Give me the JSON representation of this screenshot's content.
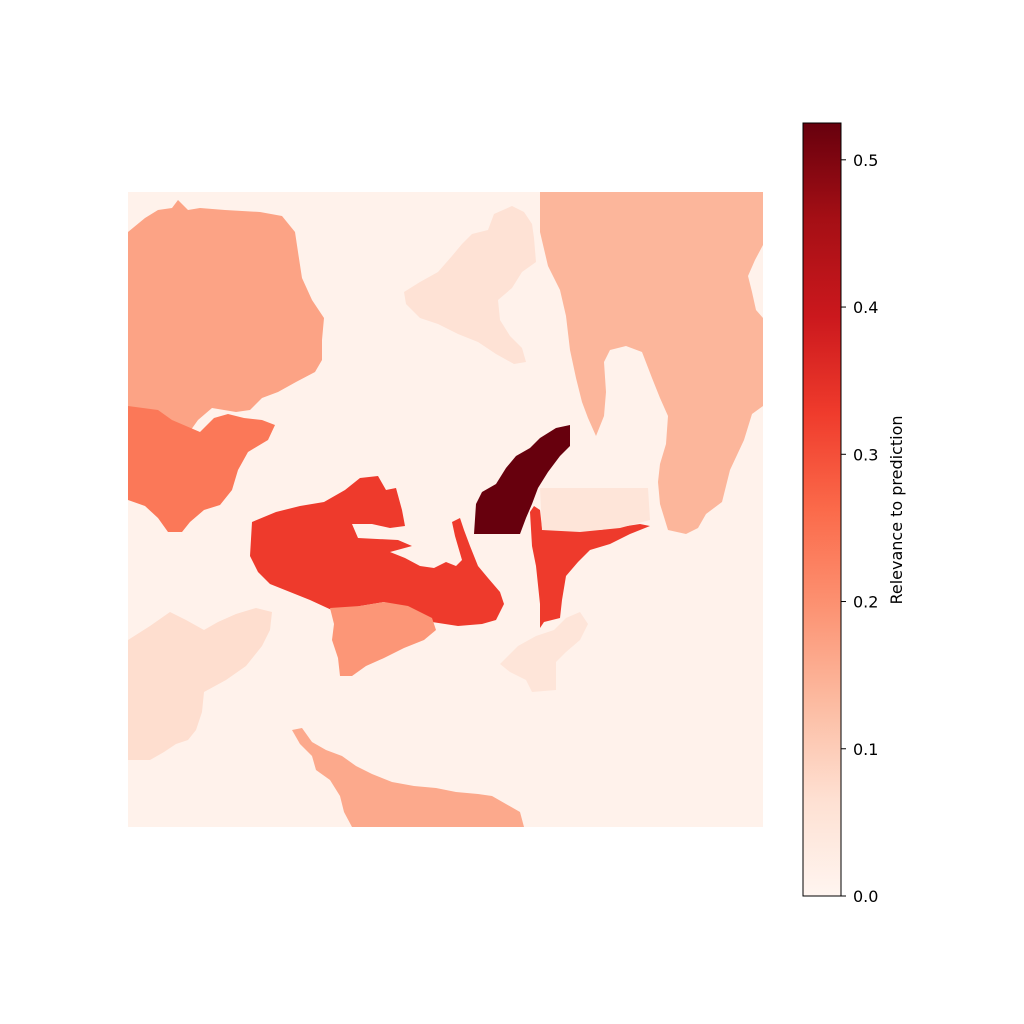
{
  "chart_data": {
    "type": "heatmap",
    "title": "",
    "xlabel": "",
    "ylabel": "",
    "axes_visible": false,
    "colormap": "Reds",
    "colorbar": {
      "label": "Relevance to prediction",
      "range": [
        0.0,
        0.525
      ],
      "ticks": [
        0.0,
        0.1,
        0.2,
        0.3,
        0.4,
        0.5
      ],
      "tick_labels": [
        "0.0",
        "0.1",
        "0.2",
        "0.3",
        "0.4",
        "0.5"
      ],
      "placement": "right"
    },
    "background_value": 0.01,
    "regions": [
      {
        "id": "upper-left-patch",
        "value": 0.17
      },
      {
        "id": "left-mid-patch",
        "value": 0.24
      },
      {
        "id": "center-left-blob",
        "value": 0.33
      },
      {
        "id": "center-left-lower-lobe",
        "value": 0.19
      },
      {
        "id": "central-peak",
        "value": 0.525
      },
      {
        "id": "center-right-spur",
        "value": 0.33
      },
      {
        "id": "upper-right-patch",
        "value": 0.14
      },
      {
        "id": "right-mid-strip",
        "value": 0.05
      },
      {
        "id": "upper-center-faint",
        "value": 0.06
      },
      {
        "id": "lower-center-patch",
        "value": 0.16
      },
      {
        "id": "lower-left-faint",
        "value": 0.07
      },
      {
        "id": "lower-center-faint",
        "value": 0.05
      }
    ]
  }
}
